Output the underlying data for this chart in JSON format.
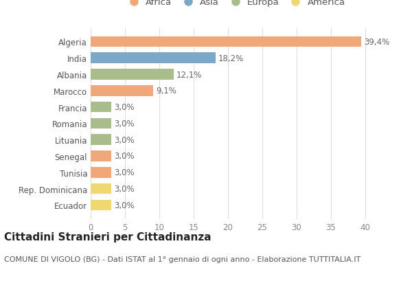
{
  "countries": [
    "Algeria",
    "India",
    "Albania",
    "Marocco",
    "Francia",
    "Romania",
    "Lituania",
    "Senegal",
    "Tunisia",
    "Rep. Dominicana",
    "Ecuador"
  ],
  "values": [
    39.4,
    18.2,
    12.1,
    9.1,
    3.0,
    3.0,
    3.0,
    3.0,
    3.0,
    3.0,
    3.0
  ],
  "labels": [
    "39,4%",
    "18,2%",
    "12,1%",
    "9,1%",
    "3,0%",
    "3,0%",
    "3,0%",
    "3,0%",
    "3,0%",
    "3,0%",
    "3,0%"
  ],
  "colors": [
    "#F0A878",
    "#7BA7C8",
    "#A8BC8C",
    "#F0A878",
    "#A8BC8C",
    "#A8BC8C",
    "#A8BC8C",
    "#F0A878",
    "#F0A878",
    "#F0D870",
    "#F0D870"
  ],
  "legend_labels": [
    "Africa",
    "Asia",
    "Europa",
    "America"
  ],
  "legend_colors": [
    "#F0A878",
    "#7BA7C8",
    "#A8BC8C",
    "#F0D870"
  ],
  "title": "Cittadini Stranieri per Cittadinanza",
  "subtitle": "COMUNE DI VIGOLO (BG) - Dati ISTAT al 1° gennaio di ogni anno - Elaborazione TUTTITALIA.IT",
  "xlim": [
    0,
    42
  ],
  "xticks": [
    0,
    5,
    10,
    15,
    20,
    25,
    30,
    35,
    40
  ],
  "bg_color": "#ffffff",
  "grid_color": "#dddddd",
  "bar_height": 0.65,
  "title_fontsize": 11,
  "subtitle_fontsize": 8,
  "label_fontsize": 8.5,
  "tick_fontsize": 8.5,
  "legend_fontsize": 9.5
}
